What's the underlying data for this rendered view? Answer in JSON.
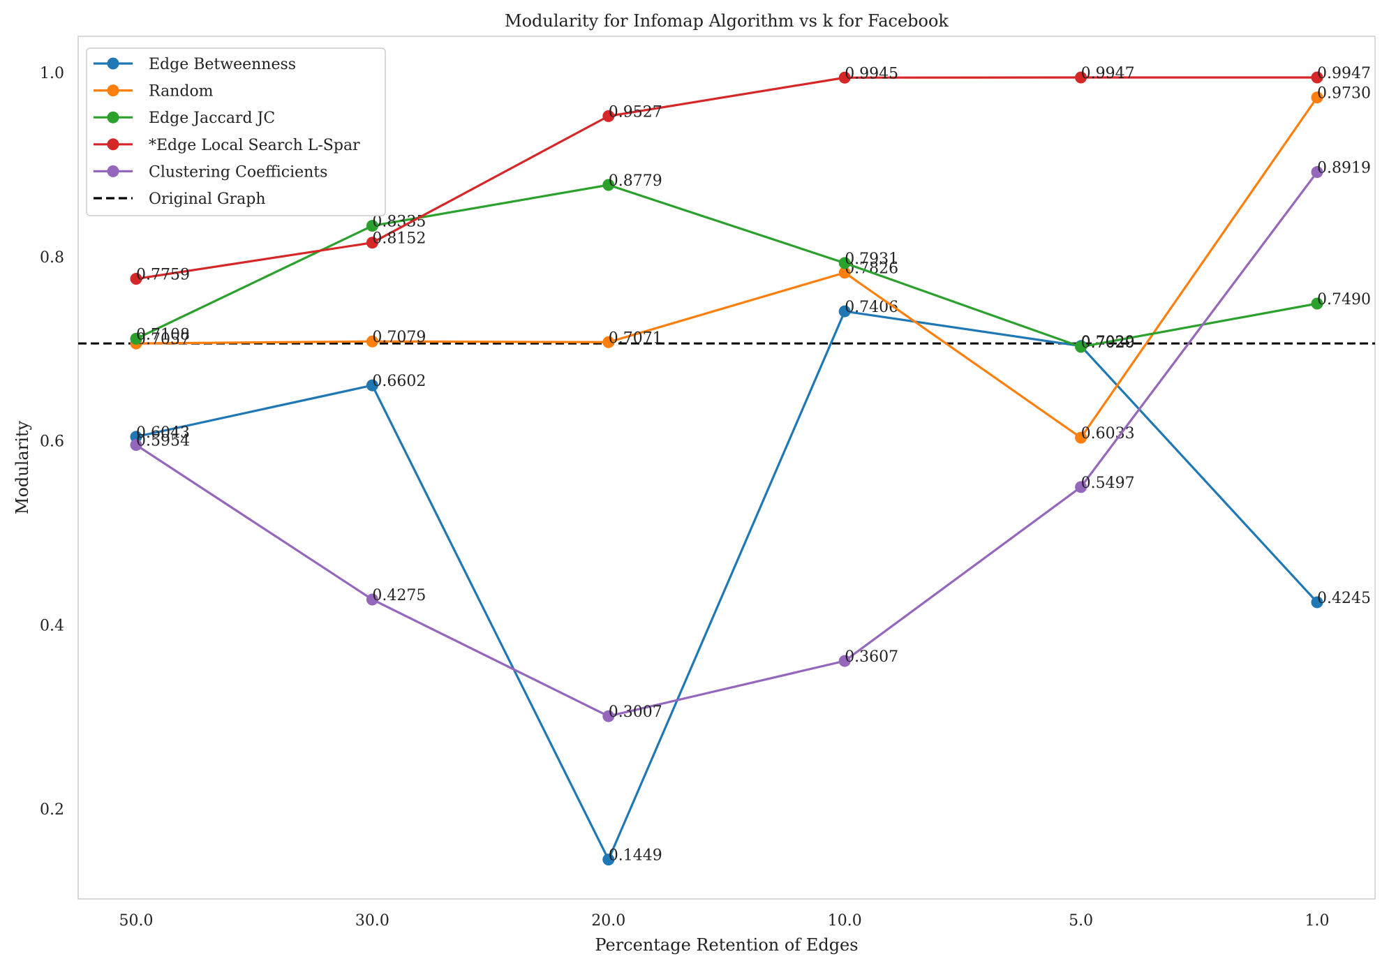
{
  "chart_data": {
    "type": "line",
    "title": "Modularity for Infomap Algorithm vs k for Facebook",
    "xlabel": "Percentage Retention of Edges",
    "ylabel": "Modularity",
    "categories": [
      "50.0",
      "30.0",
      "20.0",
      "10.0",
      "5.0",
      "1.0"
    ],
    "ylim": [
      0.1,
      1.04
    ],
    "yticks": [
      "0.2",
      "0.4",
      "0.6",
      "0.8",
      "1.0"
    ],
    "grid": false,
    "legend_position": "top-left",
    "series": [
      {
        "name": "Edge Betweenness",
        "color": "#1f77b4",
        "values": [
          0.6043,
          0.6602,
          0.1449,
          0.7406,
          0.7029,
          0.4245
        ],
        "labels": [
          "0.6043",
          "0.6602",
          "0.1449",
          "0.7406",
          "0.7029",
          "0.4245"
        ]
      },
      {
        "name": "Random",
        "color": "#ff7f0e",
        "values": [
          0.7057,
          0.7079,
          0.7071,
          0.7826,
          0.6033,
          0.973
        ],
        "labels": [
          "0.7057",
          "0.7079",
          "0.7071",
          "0.7826",
          "0.6033",
          "0.9730"
        ]
      },
      {
        "name": "Edge Jaccard JC",
        "color": "#2ca02c",
        "values": [
          0.7108,
          0.8335,
          0.8779,
          0.7931,
          0.702,
          0.749
        ],
        "labels": [
          "0.7108",
          "0.8335",
          "0.8779",
          "0.7931",
          "0.7020",
          "0.7490"
        ]
      },
      {
        "name": "*Edge Local Search L-Spar",
        "color": "#d62728",
        "values": [
          0.7759,
          0.8152,
          0.9527,
          0.9945,
          0.9947,
          0.9947
        ],
        "labels": [
          "0.7759",
          "0.8152",
          "0.9527",
          "0.9945",
          "0.9947",
          "0.9947"
        ]
      },
      {
        "name": "Clustering Coefficients",
        "color": "#9467bd",
        "values": [
          0.5954,
          0.4275,
          0.3007,
          0.3607,
          0.5497,
          0.8919
        ],
        "labels": [
          "0.5954",
          "0.4275",
          "0.3007",
          "0.3607",
          "0.5497",
          "0.8919"
        ]
      }
    ],
    "reference_line": {
      "name": "Original Graph",
      "value": 0.7057,
      "color": "#000000",
      "style": "dashed"
    }
  }
}
